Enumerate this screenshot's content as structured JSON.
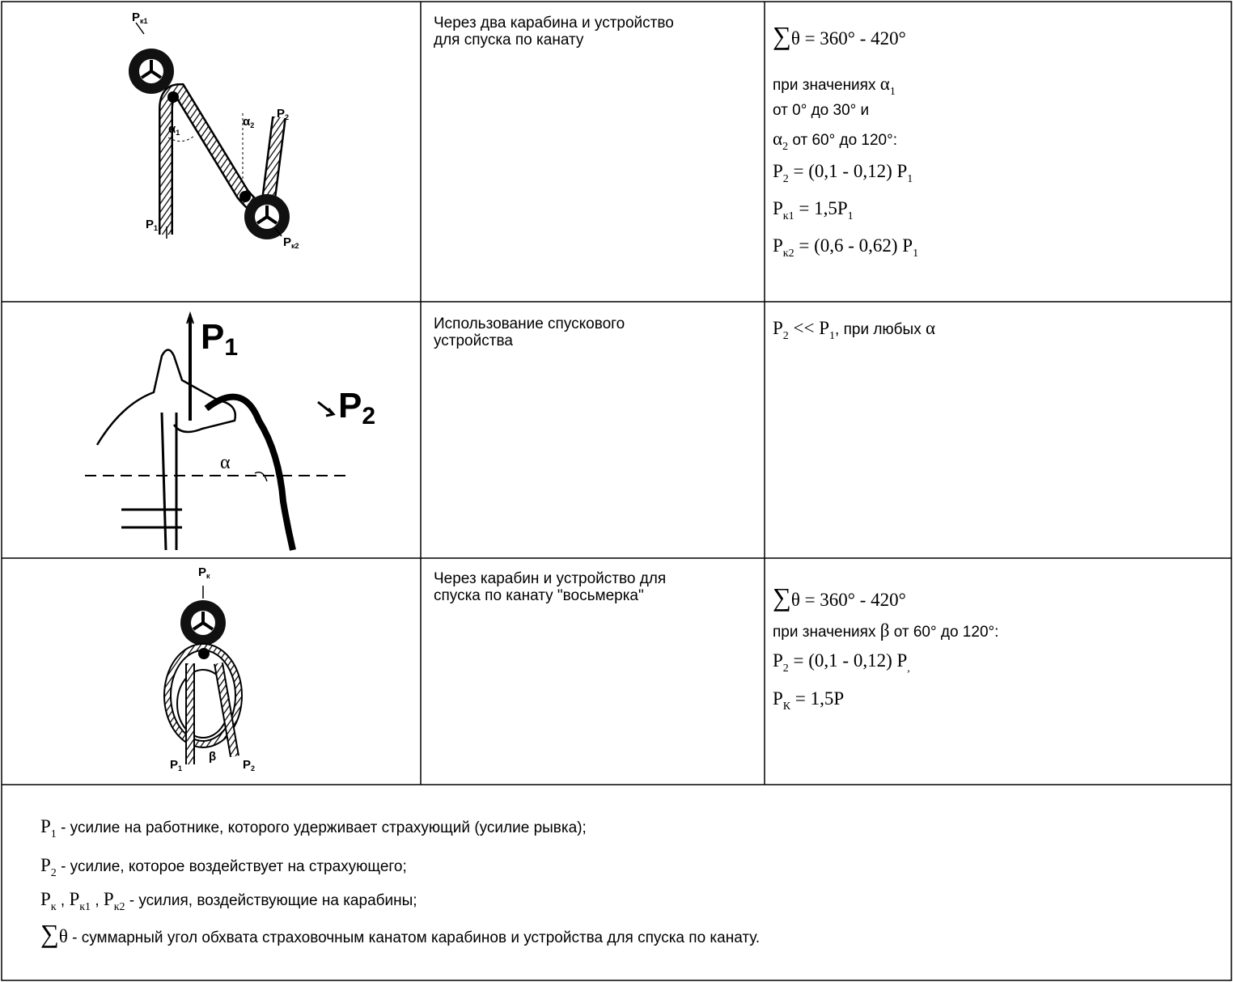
{
  "rows": [
    {
      "figure_labels": [
        [
          {
            "text": "P",
            "style": "math"
          },
          {
            "text": "к1",
            "style": "sub"
          }
        ],
        [
          {
            "text": "α",
            "style": "math"
          },
          {
            "text": "2",
            "style": "sub"
          }
        ],
        [
          {
            "text": "P",
            "style": "math"
          },
          {
            "text": "2",
            "style": "sub"
          }
        ],
        [
          {
            "text": "α",
            "style": "math"
          },
          {
            "text": "1",
            "style": "sub"
          }
        ],
        [
          {
            "text": "P",
            "style": "math"
          },
          {
            "text": "1",
            "style": "sub"
          }
        ],
        [
          {
            "text": "P",
            "style": "math"
          },
          {
            "text": "к2",
            "style": "sub"
          }
        ]
      ],
      "description": "Через два карабина и устройство для спуска по канату",
      "formula": [
        [
          {
            "text": "∑",
            "style": "big"
          },
          {
            "text": "θ = 360° - 420°",
            "style": "math"
          }
        ],
        [
          {
            "text": "при значениях ",
            "style": "plain"
          },
          {
            "text": "α",
            "style": "math"
          },
          {
            "text": "1",
            "style": "sub"
          }
        ],
        [
          {
            "text": "от 0° до 30° и",
            "style": "plain"
          }
        ],
        [
          {
            "text": "α",
            "style": "math"
          },
          {
            "text": "2",
            "style": "sub"
          },
          {
            "text": " от 60° до 120°:",
            "style": "plain"
          }
        ],
        [
          {
            "text": "P",
            "style": "math"
          },
          {
            "text": "2",
            "style": "sub"
          },
          {
            "text": " = (0,1 - 0,12) P",
            "style": "math"
          },
          {
            "text": "1",
            "style": "sub"
          }
        ],
        [
          {
            "text": "P",
            "style": "math"
          },
          {
            "text": "к1",
            "style": "sub"
          },
          {
            "text": " = 1,5P",
            "style": "math"
          },
          {
            "text": "1",
            "style": "sub"
          }
        ],
        [
          {
            "text": "P",
            "style": "math"
          },
          {
            "text": "к2",
            "style": "sub"
          },
          {
            "text": " = (0,6 - 0,62) P",
            "style": "math"
          },
          {
            "text": "1",
            "style": "sub"
          }
        ]
      ]
    },
    {
      "figure_labels": [
        [
          {
            "text": "P",
            "style": "math"
          },
          {
            "text": "1",
            "style": "sub"
          }
        ],
        [
          {
            "text": "P",
            "style": "math"
          },
          {
            "text": "2",
            "style": "sub"
          }
        ],
        [
          {
            "text": "α",
            "style": "math"
          }
        ]
      ],
      "description": "Использование спускового устройства",
      "formula": [
        [
          {
            "text": "P",
            "style": "math"
          },
          {
            "text": "2",
            "style": "sub"
          },
          {
            "text": " << P",
            "style": "math"
          },
          {
            "text": "1",
            "style": "sub"
          },
          {
            "text": ", при любых ",
            "style": "plain"
          },
          {
            "text": "α",
            "style": "math"
          }
        ]
      ]
    },
    {
      "figure_labels": [
        [
          {
            "text": "P",
            "style": "math"
          },
          {
            "text": "к",
            "style": "sub"
          }
        ],
        [
          {
            "text": "P",
            "style": "math"
          },
          {
            "text": "1",
            "style": "sub"
          }
        ],
        [
          {
            "text": "β",
            "style": "math"
          }
        ],
        [
          {
            "text": "P",
            "style": "math"
          },
          {
            "text": "2",
            "style": "sub"
          }
        ]
      ],
      "description": "Через карабин и устройство для спуска по канату \"восьмерка\"",
      "formula": [
        [
          {
            "text": "∑",
            "style": "big"
          },
          {
            "text": "θ = 360° - 420°",
            "style": "math"
          }
        ],
        [
          {
            "text": "при значениях ",
            "style": "plain"
          },
          {
            "text": "β",
            "style": "math"
          },
          {
            "text": " от 60° до 120°:",
            "style": "plain"
          }
        ],
        [
          {
            "text": "P",
            "style": "math"
          },
          {
            "text": "2",
            "style": "sub"
          },
          {
            "text": " = (0,1 - 0,12) P",
            "style": "math"
          },
          {
            "text": ",",
            "style": "sub"
          }
        ],
        [
          {
            "text": "P",
            "style": "math"
          },
          {
            "text": "К",
            "style": "sub"
          },
          {
            "text": " = 1,5P",
            "style": "math"
          }
        ]
      ]
    }
  ],
  "legend": [
    [
      {
        "text": "P",
        "style": "math"
      },
      {
        "text": "1",
        "style": "sub"
      },
      {
        "text": " - усилие на работнике, которого удерживает страхующий (усилие рывка);",
        "style": "plain"
      }
    ],
    [
      {
        "text": "P",
        "style": "math"
      },
      {
        "text": "2",
        "style": "sub"
      },
      {
        "text": " - усилие, которое воздействует на страхующего;",
        "style": "plain"
      }
    ],
    [
      {
        "text": "P",
        "style": "math"
      },
      {
        "text": "к",
        "style": "sub"
      },
      {
        "text": " , ",
        "style": "plain"
      },
      {
        "text": "P",
        "style": "math"
      },
      {
        "text": "к1",
        "style": "sub"
      },
      {
        "text": " , ",
        "style": "plain"
      },
      {
        "text": "P",
        "style": "math"
      },
      {
        "text": "к2",
        "style": "sub"
      },
      {
        "text": " - усилия, воздействующие на карабины;",
        "style": "plain"
      }
    ],
    [
      {
        "text": "∑",
        "style": "big"
      },
      {
        "text": "θ",
        "style": "math"
      },
      {
        "text": " - суммарный угол обхвата страховочным канатом карабинов и устройства для спуска по канату.",
        "style": "plain"
      }
    ]
  ]
}
